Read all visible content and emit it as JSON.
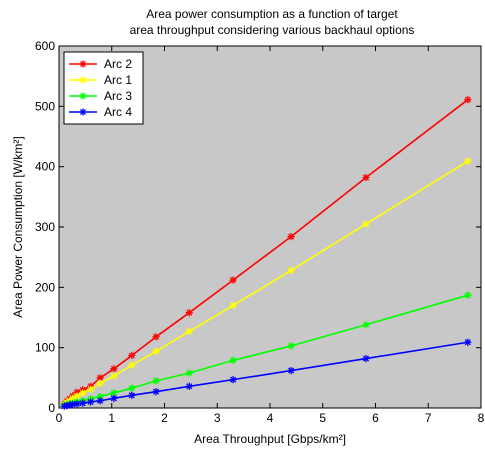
{
  "chart_data": {
    "type": "line",
    "title_lines": [
      "Area power consumption as a function of target",
      "area throughput considering various backhaul options"
    ],
    "xlabel": "Area Throughput [Gbps/km²]",
    "ylabel": "Area Power Consumption [W/km²]",
    "xlim": [
      0,
      8
    ],
    "ylim": [
      0,
      600
    ],
    "xticks": [
      0,
      1,
      2,
      3,
      4,
      5,
      6,
      7,
      8
    ],
    "yticks": [
      0,
      100,
      200,
      300,
      400,
      500,
      600
    ],
    "grid": false,
    "legend_position": "top-left",
    "plot_background": "#c8c8c8",
    "series": [
      {
        "name": "Arc 2",
        "color": "#ff0000",
        "marker": "asterisk",
        "x": [
          0.1,
          0.15,
          0.2,
          0.26,
          0.34,
          0.45,
          0.6,
          0.78,
          1.04,
          1.38,
          1.84,
          2.47,
          3.3,
          4.4,
          5.82,
          7.75
        ],
        "y": [
          7,
          11,
          15,
          20,
          26,
          30,
          36,
          50,
          65,
          87,
          118,
          158,
          212,
          284,
          382,
          511
        ]
      },
      {
        "name": "Arc 1",
        "color": "#ffff00",
        "marker": "asterisk",
        "x": [
          0.1,
          0.15,
          0.2,
          0.26,
          0.34,
          0.45,
          0.6,
          0.78,
          1.04,
          1.38,
          1.84,
          2.47,
          3.3,
          4.4,
          5.82,
          7.75
        ],
        "y": [
          6,
          9,
          12,
          16,
          20,
          25,
          31,
          41,
          53,
          71,
          94,
          127,
          170,
          228,
          305,
          409
        ]
      },
      {
        "name": "Arc 3",
        "color": "#00ff00",
        "marker": "asterisk",
        "x": [
          0.1,
          0.15,
          0.2,
          0.26,
          0.34,
          0.45,
          0.6,
          0.78,
          1.04,
          1.38,
          1.84,
          2.47,
          3.3,
          4.4,
          5.82,
          7.75
        ],
        "y": [
          4,
          6,
          7,
          8,
          10,
          12,
          15,
          19,
          25,
          33,
          45,
          58,
          79,
          103,
          138,
          187
        ]
      },
      {
        "name": "Arc 4",
        "color": "#0000ff",
        "marker": "asterisk",
        "x": [
          0.1,
          0.15,
          0.2,
          0.26,
          0.34,
          0.45,
          0.6,
          0.78,
          1.04,
          1.38,
          1.84,
          2.47,
          3.3,
          4.4,
          5.82,
          7.75
        ],
        "y": [
          3,
          4,
          5,
          6,
          7,
          8,
          10,
          12,
          16,
          21,
          27,
          36,
          47,
          62,
          82,
          109
        ]
      }
    ]
  }
}
